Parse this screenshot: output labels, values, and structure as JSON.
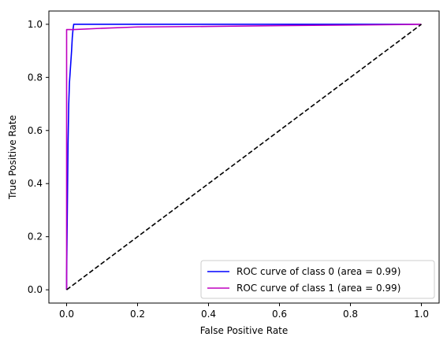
{
  "chart_data": {
    "type": "line",
    "title": "",
    "xlabel": "False Positive Rate",
    "ylabel": "True Positive Rate",
    "xlim": [
      -0.05,
      1.05
    ],
    "ylim": [
      -0.05,
      1.05
    ],
    "x_ticks": [
      0.0,
      0.2,
      0.4,
      0.6,
      0.8,
      1.0
    ],
    "x_tick_labels": [
      "0.0",
      "0.2",
      "0.4",
      "0.6",
      "0.8",
      "1.0"
    ],
    "y_ticks": [
      0.0,
      0.2,
      0.4,
      0.6,
      0.8,
      1.0
    ],
    "y_tick_labels": [
      "0.0",
      "0.2",
      "0.4",
      "0.6",
      "0.8",
      "1.0"
    ],
    "grid": false,
    "legend_position": "lower-right",
    "series": [
      {
        "name": "ROC curve of class 0 (area = 0.99)",
        "color": "#0000ff",
        "x": [
          0.0,
          0.0,
          0.002,
          0.004,
          0.006,
          0.008,
          0.01,
          0.012,
          0.014,
          0.016,
          0.018,
          0.02,
          0.03,
          0.1,
          0.2,
          0.4,
          0.6,
          0.8,
          1.0
        ],
        "y": [
          0.0,
          0.05,
          0.3,
          0.55,
          0.7,
          0.78,
          0.82,
          0.86,
          0.9,
          0.95,
          0.98,
          1.0,
          1.0,
          1.0,
          1.0,
          1.0,
          1.0,
          1.0,
          1.0
        ]
      },
      {
        "name": "ROC curve of class 1 (area = 0.99)",
        "color": "#bf00bf",
        "x": [
          0.0,
          0.0,
          0.001,
          0.02,
          0.1,
          0.2,
          0.4,
          0.6,
          0.8,
          1.0
        ],
        "y": [
          0.0,
          0.98,
          0.98,
          0.98,
          0.985,
          0.99,
          0.992,
          0.995,
          0.997,
          1.0
        ]
      },
      {
        "name": "",
        "color": "#000000",
        "dashed": true,
        "x": [
          0.0,
          1.0
        ],
        "y": [
          0.0,
          1.0
        ]
      }
    ]
  }
}
